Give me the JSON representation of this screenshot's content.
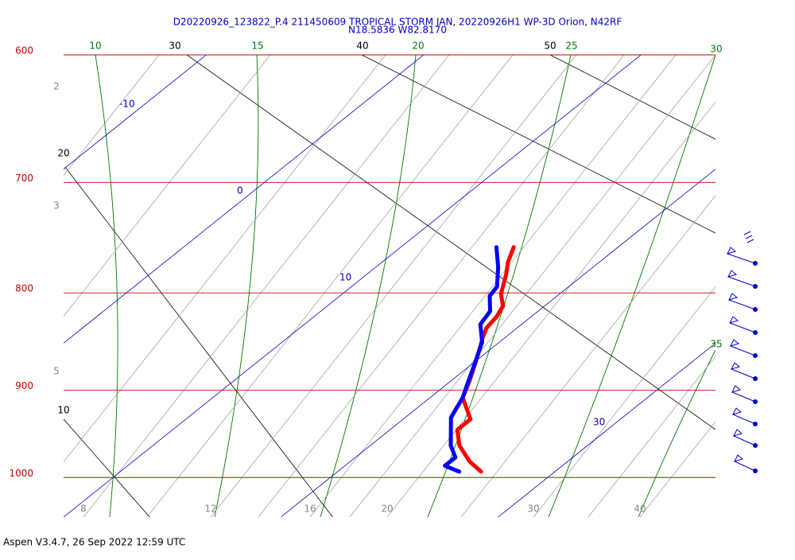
{
  "chart_data": {
    "type": "skewt",
    "title": "D20220926_123822_P.4 211450609 TROPICAL STORM JAN, 20220926H1 WP-3D Orion, N42RF",
    "subtitle": "N18.5836 W82.8170",
    "footer": "Aspen V3.4.7, 26 Sep 2022  12:59 UTC",
    "log_y": true,
    "ylim": [
      1049,
      600
    ],
    "yticks": [
      600,
      700,
      800,
      900,
      1000
    ],
    "xlim": [
      10,
      40
    ],
    "xticks": [
      -10,
      0,
      10,
      {
        "value": 20,
        "label": null
      },
      30
    ],
    "dry_adiabat_labels": [
      30,
      40,
      50,
      20,
      10
    ],
    "moist_adiabat_labels": [
      10,
      15,
      20,
      25,
      30,
      35
    ],
    "mixing_ratio_labels": [
      2,
      3,
      5,
      8,
      12,
      16,
      20,
      30,
      40
    ],
    "series": [
      {
        "color": "#ff0000",
        "x": [
          15.2,
          15.8,
          16.4,
          17.3,
          18.1,
          18.4,
          18.6,
          19.0,
          19.9,
          20.9,
          21.5,
          23.1,
          23.1,
          24.1,
          25.5,
          26.6
        ],
        "values": [
          757,
          771,
          782,
          801,
          813,
          823,
          835,
          845,
          866,
          891,
          908,
          932,
          944,
          962,
          981,
          993
        ]
      },
      {
        "color": "#0000ff",
        "x": [
          14.4,
          15.6,
          16.7,
          16.9,
          17.8,
          18.1,
          19.2,
          20.2,
          21.0,
          21.5,
          22.1,
          23.7,
          24.6,
          24.6,
          25.6
        ],
        "values": [
          757,
          775,
          794,
          803,
          818,
          831,
          849,
          874,
          895,
          908,
          930,
          962,
          976,
          986,
          993
        ]
      }
    ]
  }
}
